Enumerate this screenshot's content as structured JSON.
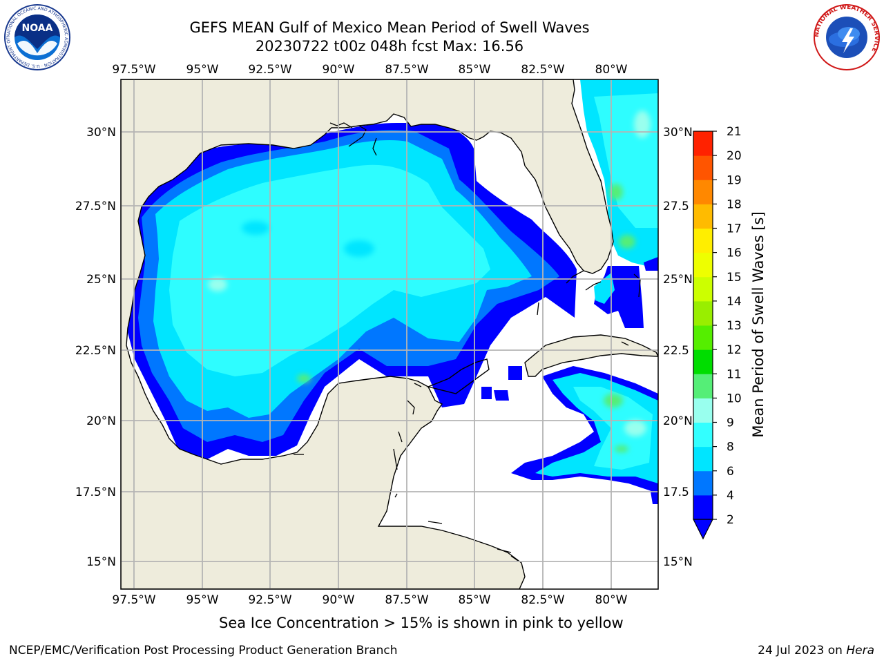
{
  "header": {
    "title_line1": "GEFS MEAN Gulf of Mexico Mean Period of Swell Waves",
    "title_line2": "20230722 t00z 048h fcst   Max: 16.56"
  },
  "logos": {
    "noaa_text": "NOAA",
    "noaa_ring": "NATIONAL OCEANIC AND ATMOSPHERIC ADMINISTRATION · U.S. DEPARTMENT OF COMMERCE",
    "nws_ring": "NATIONAL WEATHER SERVICE"
  },
  "map": {
    "lon_labels": [
      "97.5°W",
      "95°W",
      "92.5°W",
      "90°W",
      "87.5°W",
      "85°W",
      "82.5°W",
      "80°W"
    ],
    "lat_labels_left": [
      "30°N",
      "27.5°N",
      "25°N",
      "22.5°N",
      "20°N",
      "17.5°N",
      "15°N"
    ],
    "lat_labels_right": [
      "30°N",
      "27.5",
      "25°N",
      "22.5",
      "20°N",
      "17.5",
      "15°N"
    ],
    "colors": {
      "land": "#eeecdc",
      "coast": "#000000",
      "grid": "#b4b4b4",
      "ocean_nodata": "#ffffff"
    }
  },
  "colorbar": {
    "label": "Mean Period of Swell Waves [s]",
    "ticks": [
      "2",
      "4",
      "6",
      "8",
      "9",
      "10",
      "11",
      "12",
      "13",
      "14",
      "15",
      "16",
      "17",
      "18",
      "19",
      "20",
      "21"
    ],
    "colors": [
      "#0000ff",
      "#0077ff",
      "#00e5ff",
      "#33ffff",
      "#99ffee",
      "#55ee77",
      "#00dd00",
      "#55ee00",
      "#99ee00",
      "#ccff00",
      "#eeff00",
      "#ffee00",
      "#ffbb00",
      "#ff8800",
      "#ff5500",
      "#ff2200"
    ]
  },
  "notes": {
    "sea_ice": "Sea Ice Concentration > 15% is shown in pink to yellow",
    "branch": "NCEP/EMC/Verification Post Processing Product Generation Branch",
    "date": "24 Jul 2023 on ",
    "host": "Hera"
  }
}
